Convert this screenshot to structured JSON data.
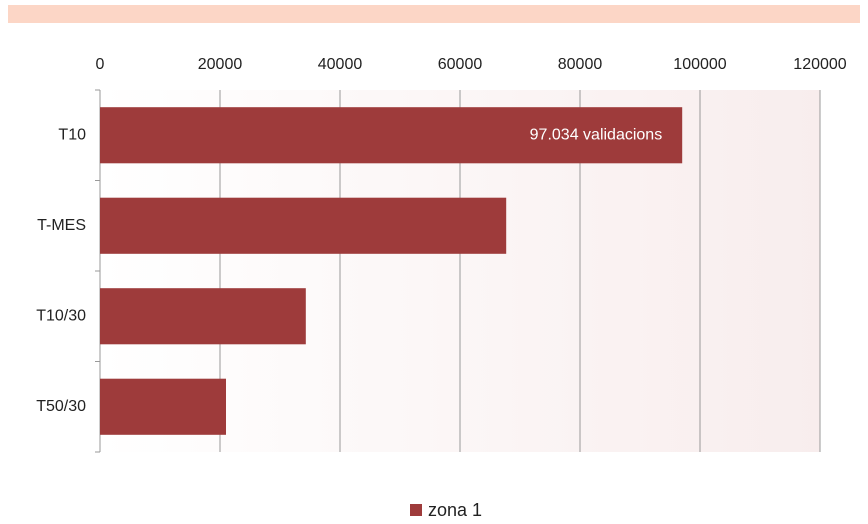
{
  "chart_data": {
    "type": "bar",
    "orientation": "horizontal",
    "categories": [
      "T10",
      "T-MES",
      "T10/30",
      "T50/30"
    ],
    "series": [
      {
        "name": "zona 1",
        "color": "#9e3b3b",
        "values": [
          97034,
          67700,
          34300,
          21000
        ],
        "value_labels": [
          "97.034 validacions",
          null,
          null,
          null
        ]
      }
    ],
    "xlim": [
      0,
      120000
    ],
    "xticks": [
      0,
      20000,
      40000,
      60000,
      80000,
      100000,
      120000
    ],
    "grid": true,
    "legend": "bottom"
  }
}
